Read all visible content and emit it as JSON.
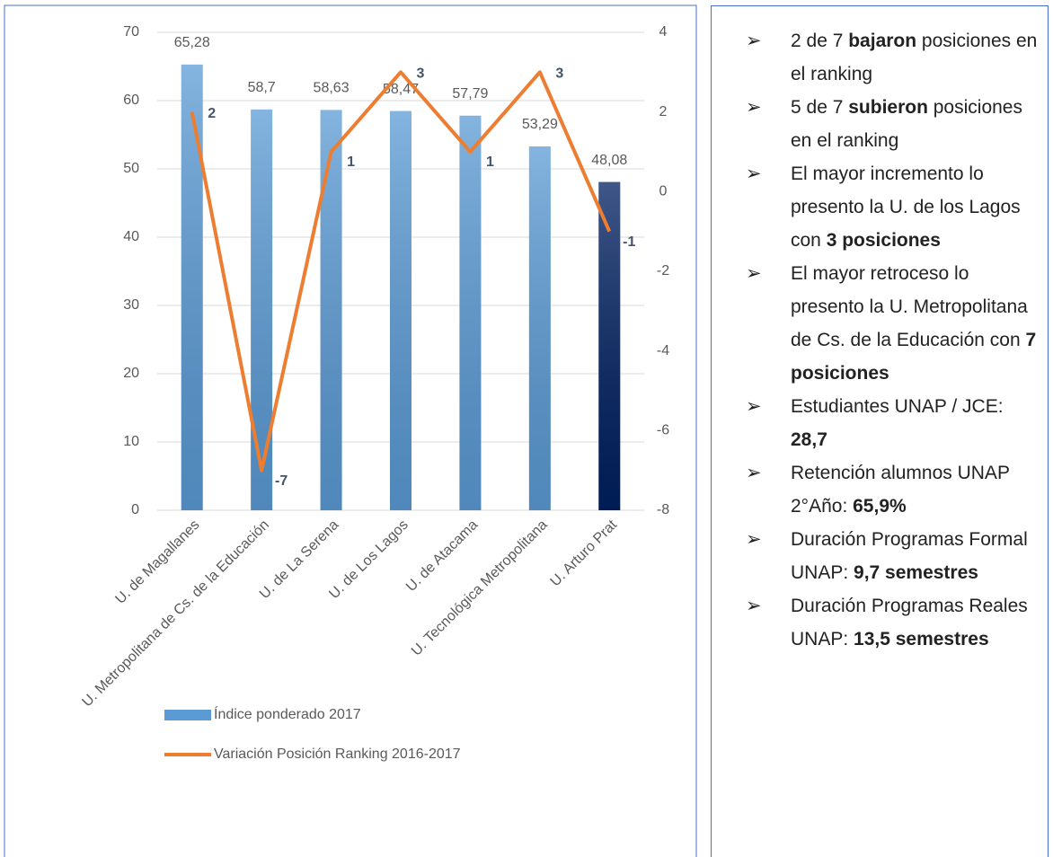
{
  "chart_data": {
    "type": "bar_line",
    "categories": [
      "U. de Magallanes",
      "U. Metropolitana de Cs. de la Educación",
      "U. de La Serena",
      "U. de Los Lagos",
      "U. de Atacama",
      "U. Tecnológica Metropolitana",
      "U. Arturo Prat"
    ],
    "series": [
      {
        "name": "Índice ponderado 2017",
        "type": "bar",
        "color": "#5b9bd5",
        "colors": [
          "#5b9bd5",
          "#5b9bd5",
          "#5b9bd5",
          "#5b9bd5",
          "#5b9bd5",
          "#5b9bd5",
          "#002060"
        ],
        "values": [
          65.28,
          58.7,
          58.63,
          58.47,
          57.79,
          53.29,
          48.08
        ],
        "value_labels": [
          "65,28",
          "58,7",
          "58,63",
          "58,47",
          "57,79",
          "53,29",
          "48,08"
        ]
      },
      {
        "name": "Variación Posición Ranking 2016-2017",
        "type": "line",
        "axis": "y2",
        "color": "#ed7d31",
        "values": [
          2,
          -7,
          1,
          3,
          1,
          3,
          -1
        ]
      }
    ],
    "ylim": [
      0,
      70
    ],
    "yticks": [
      0,
      10,
      20,
      30,
      40,
      50,
      60,
      70
    ],
    "y2lim": [
      -8,
      4
    ],
    "y2ticks": [
      -8,
      -6,
      -4,
      -2,
      0,
      2,
      4
    ],
    "grid": true
  },
  "notes": [
    {
      "parts": [
        "2 de 7 ",
        "bajaron",
        " posiciones en el ranking"
      ],
      "bold": [
        1
      ]
    },
    {
      "parts": [
        "5 de 7 ",
        "subieron",
        " posiciones en el ranking"
      ],
      "bold": [
        1
      ]
    },
    {
      "parts": [
        "El mayor incremento lo presento la U. de los Lagos con ",
        "3 posiciones"
      ],
      "bold": [
        1
      ]
    },
    {
      "parts": [
        "El mayor retroceso lo presento la U. Metropolitana de Cs. de la Educación con ",
        "7 posiciones"
      ],
      "bold": [
        1
      ]
    },
    {
      "parts": [
        "Estudiantes UNAP / JCE: ",
        "28,7"
      ],
      "bold": [
        1
      ]
    },
    {
      "parts": [
        "Retención alumnos UNAP 2°Año: ",
        "65,9%"
      ],
      "bold": [
        1
      ]
    },
    {
      "parts": [
        "Duración Programas Formal UNAP: ",
        "9,7 semestres"
      ],
      "bold": [
        1
      ]
    },
    {
      "parts": [
        "Duración Programas Reales UNAP: ",
        "13,5 semestres"
      ],
      "bold": [
        1
      ]
    }
  ]
}
